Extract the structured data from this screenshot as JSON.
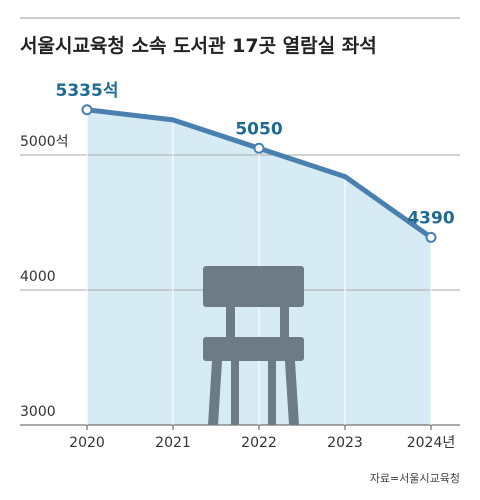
{
  "chart_data": {
    "type": "line",
    "title": "서울시교육청 소속 도서관 17곳 열람실 좌석",
    "categories": [
      "2020",
      "2021",
      "2022",
      "2023",
      "2024년"
    ],
    "values": [
      5335,
      5260,
      5050,
      4840,
      4390
    ],
    "value_labels": [
      "5335석",
      null,
      "5050",
      null,
      "4390"
    ],
    "color": "#4a80b0",
    "fill": "#d7ebf4",
    "ylim": [
      3000,
      5500
    ],
    "yticks": [
      3000,
      4000,
      {
        "value": 5000,
        "label": "5000석"
      }
    ],
    "grid": true,
    "source": "자료=서울시교육청"
  }
}
